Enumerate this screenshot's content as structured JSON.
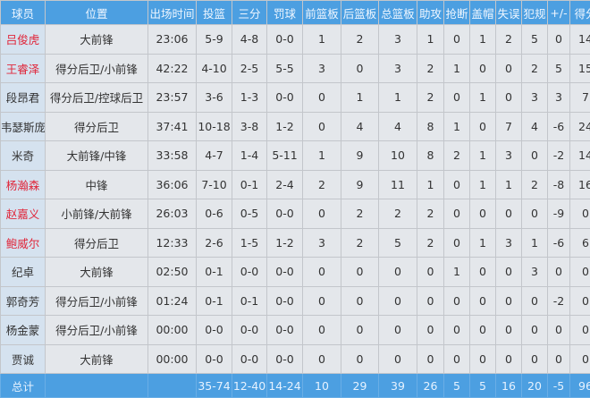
{
  "columns": [
    "球员",
    "位置",
    "出场时间",
    "投篮",
    "三分",
    "罚球",
    "前篮板",
    "后篮板",
    "总篮板",
    "助攻",
    "抢断",
    "盖帽",
    "失误",
    "犯规",
    "+/-",
    "得分"
  ],
  "colors": {
    "header": "#4c9fe1",
    "starter_name": "#e0263a",
    "cell": "#e4e7eb"
  },
  "rows": [
    {
      "starter": true,
      "cells": [
        "吕俊虎",
        "大前锋",
        "23:06",
        "5-9",
        "4-8",
        "0-0",
        "1",
        "2",
        "3",
        "1",
        "0",
        "1",
        "2",
        "5",
        "0",
        "14"
      ]
    },
    {
      "starter": true,
      "cells": [
        "王睿泽",
        "得分后卫/小前锋",
        "42:22",
        "4-10",
        "2-5",
        "5-5",
        "3",
        "0",
        "3",
        "2",
        "1",
        "0",
        "0",
        "2",
        "5",
        "15"
      ]
    },
    {
      "starter": false,
      "cells": [
        "段昂君",
        "得分后卫/控球后卫",
        "23:57",
        "3-6",
        "1-3",
        "0-0",
        "0",
        "1",
        "1",
        "2",
        "0",
        "1",
        "0",
        "3",
        "3",
        "7"
      ]
    },
    {
      "starter": false,
      "cells": [
        "韦瑟斯庞",
        "得分后卫",
        "37:41",
        "10-18",
        "3-8",
        "1-2",
        "0",
        "4",
        "4",
        "8",
        "1",
        "0",
        "7",
        "4",
        "-6",
        "24"
      ]
    },
    {
      "starter": false,
      "cells": [
        "米奇",
        "大前锋/中锋",
        "33:58",
        "4-7",
        "1-4",
        "5-11",
        "1",
        "9",
        "10",
        "8",
        "2",
        "1",
        "3",
        "0",
        "-2",
        "14"
      ]
    },
    {
      "starter": true,
      "cells": [
        "杨瀚森",
        "中锋",
        "36:06",
        "7-10",
        "0-1",
        "2-4",
        "2",
        "9",
        "11",
        "1",
        "0",
        "1",
        "1",
        "2",
        "-8",
        "16"
      ]
    },
    {
      "starter": true,
      "cells": [
        "赵嘉义",
        "小前锋/大前锋",
        "26:03",
        "0-6",
        "0-5",
        "0-0",
        "0",
        "2",
        "2",
        "2",
        "0",
        "0",
        "0",
        "0",
        "-9",
        "0"
      ]
    },
    {
      "starter": true,
      "cells": [
        "鲍威尔",
        "得分后卫",
        "12:33",
        "2-6",
        "1-5",
        "1-2",
        "3",
        "2",
        "5",
        "2",
        "0",
        "1",
        "3",
        "1",
        "-6",
        "6"
      ]
    },
    {
      "starter": false,
      "cells": [
        "纪卓",
        "大前锋",
        "02:50",
        "0-1",
        "0-0",
        "0-0",
        "0",
        "0",
        "0",
        "0",
        "1",
        "0",
        "0",
        "3",
        "0",
        "0"
      ]
    },
    {
      "starter": false,
      "cells": [
        "郭奇芳",
        "得分后卫/小前锋",
        "01:24",
        "0-1",
        "0-1",
        "0-0",
        "0",
        "0",
        "0",
        "0",
        "0",
        "0",
        "0",
        "0",
        "-2",
        "0"
      ]
    },
    {
      "starter": false,
      "cells": [
        "杨金蒙",
        "得分后卫/小前锋",
        "00:00",
        "0-0",
        "0-0",
        "0-0",
        "0",
        "0",
        "0",
        "0",
        "0",
        "0",
        "0",
        "0",
        "0",
        "0"
      ]
    },
    {
      "starter": false,
      "cells": [
        "贾诚",
        "大前锋",
        "00:00",
        "0-0",
        "0-0",
        "0-0",
        "0",
        "0",
        "0",
        "0",
        "0",
        "0",
        "0",
        "0",
        "0",
        "0"
      ]
    }
  ],
  "total": [
    "总计",
    "",
    "",
    "35-74",
    "12-40",
    "14-24",
    "10",
    "29",
    "39",
    "26",
    "5",
    "5",
    "16",
    "20",
    "-5",
    "96"
  ]
}
